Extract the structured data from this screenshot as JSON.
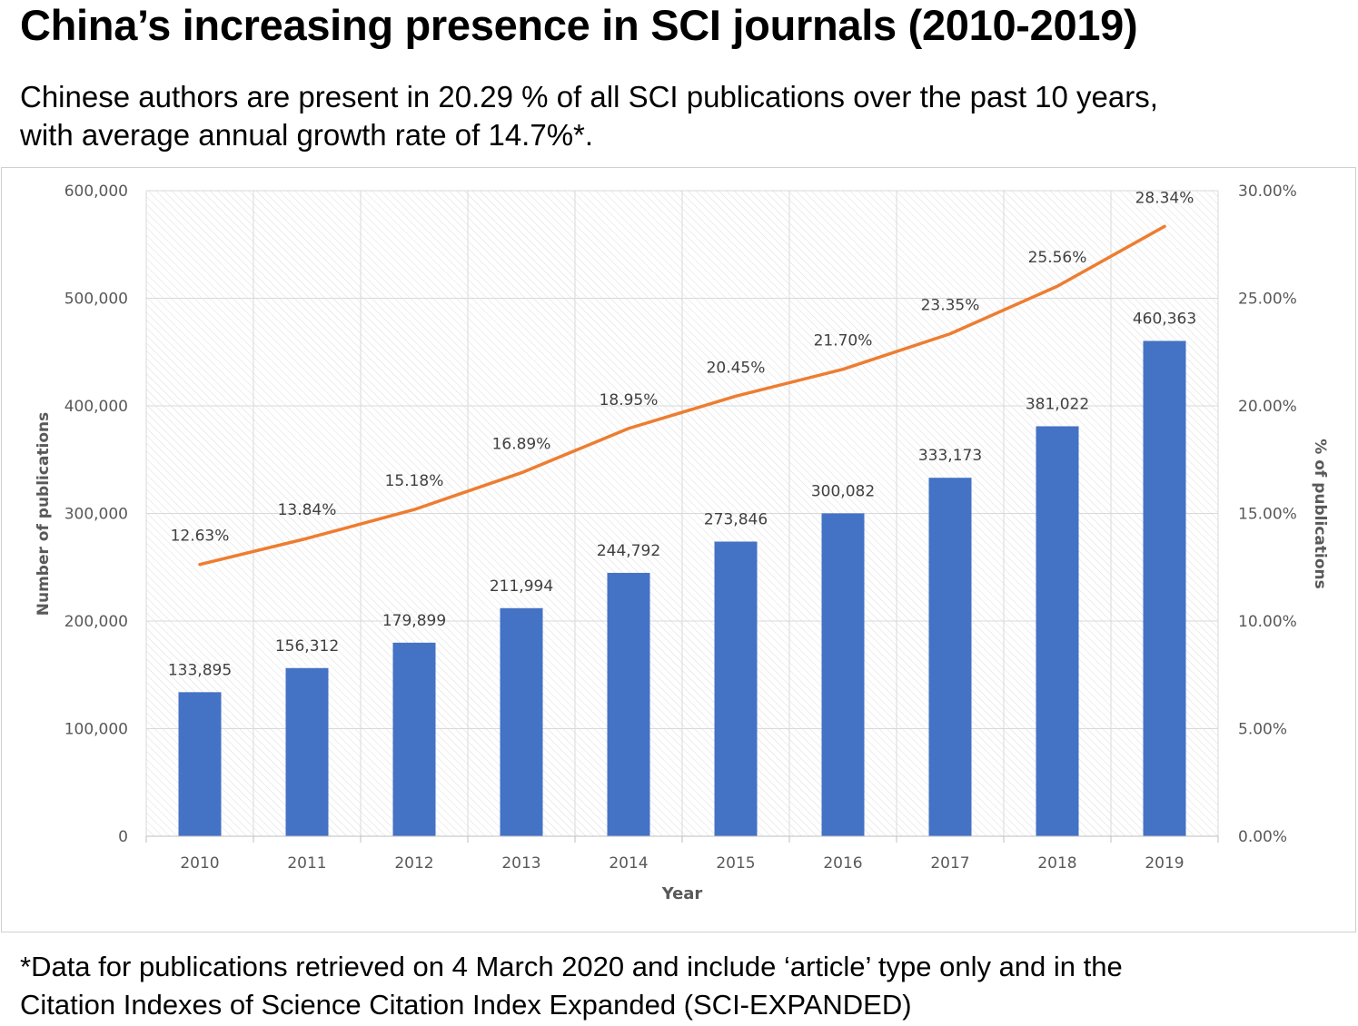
{
  "header": {
    "title": "China’s increasing presence in SCI journals (2010-2019)",
    "subtitle_line1": "Chinese authors are present in 20.29 % of all SCI publications over the past 10 years,",
    "subtitle_line2": "with average annual growth rate of 14.7%*."
  },
  "footer": {
    "note_line1": "*Data for publications retrieved on 4 March 2020 and include ‘article’ type only and in the",
    "note_line2": "Citation Indexes of Science Citation Index Expanded (SCI-EXPANDED)"
  },
  "colors": {
    "bar": "#4472c4",
    "line": "#ed7d31",
    "axis_text": "#595959",
    "grid": "#d9d9d9"
  },
  "chart_data": {
    "type": "bar",
    "title": "",
    "xlabel": "Year",
    "ylabel": "Number of publications",
    "y2label": "% of publications",
    "categories": [
      "2010",
      "2011",
      "2012",
      "2013",
      "2014",
      "2015",
      "2016",
      "2017",
      "2018",
      "2019"
    ],
    "ylim": [
      0,
      600000
    ],
    "y2lim": [
      0,
      30
    ],
    "yticks": [
      0,
      100000,
      200000,
      300000,
      400000,
      500000,
      600000
    ],
    "ytick_labels": [
      "0",
      "100,000",
      "200,000",
      "300,000",
      "400,000",
      "500,000",
      "600,000"
    ],
    "y2ticks": [
      0,
      5,
      10,
      15,
      20,
      25,
      30
    ],
    "y2tick_labels": [
      "0.00%",
      "5.00%",
      "10.00%",
      "15.00%",
      "20.00%",
      "25.00%",
      "30.00%"
    ],
    "grid": true,
    "series": [
      {
        "name": "Number of publications",
        "type": "bar",
        "axis": "left",
        "values": [
          133895,
          156312,
          179899,
          211994,
          244792,
          273846,
          300082,
          333173,
          381022,
          460363
        ],
        "labels": [
          "133,895",
          "156,312",
          "179,899",
          "211,994",
          "244,792",
          "273,846",
          "300,082",
          "333,173",
          "381,022",
          "460,363"
        ]
      },
      {
        "name": "% of publications",
        "type": "line",
        "axis": "right",
        "values": [
          12.63,
          13.84,
          15.18,
          16.89,
          18.95,
          20.45,
          21.7,
          23.35,
          25.56,
          28.34
        ],
        "labels": [
          "12.63%",
          "13.84%",
          "15.18%",
          "16.89%",
          "18.95%",
          "20.45%",
          "21.70%",
          "23.35%",
          "25.56%",
          "28.34%"
        ]
      }
    ]
  }
}
